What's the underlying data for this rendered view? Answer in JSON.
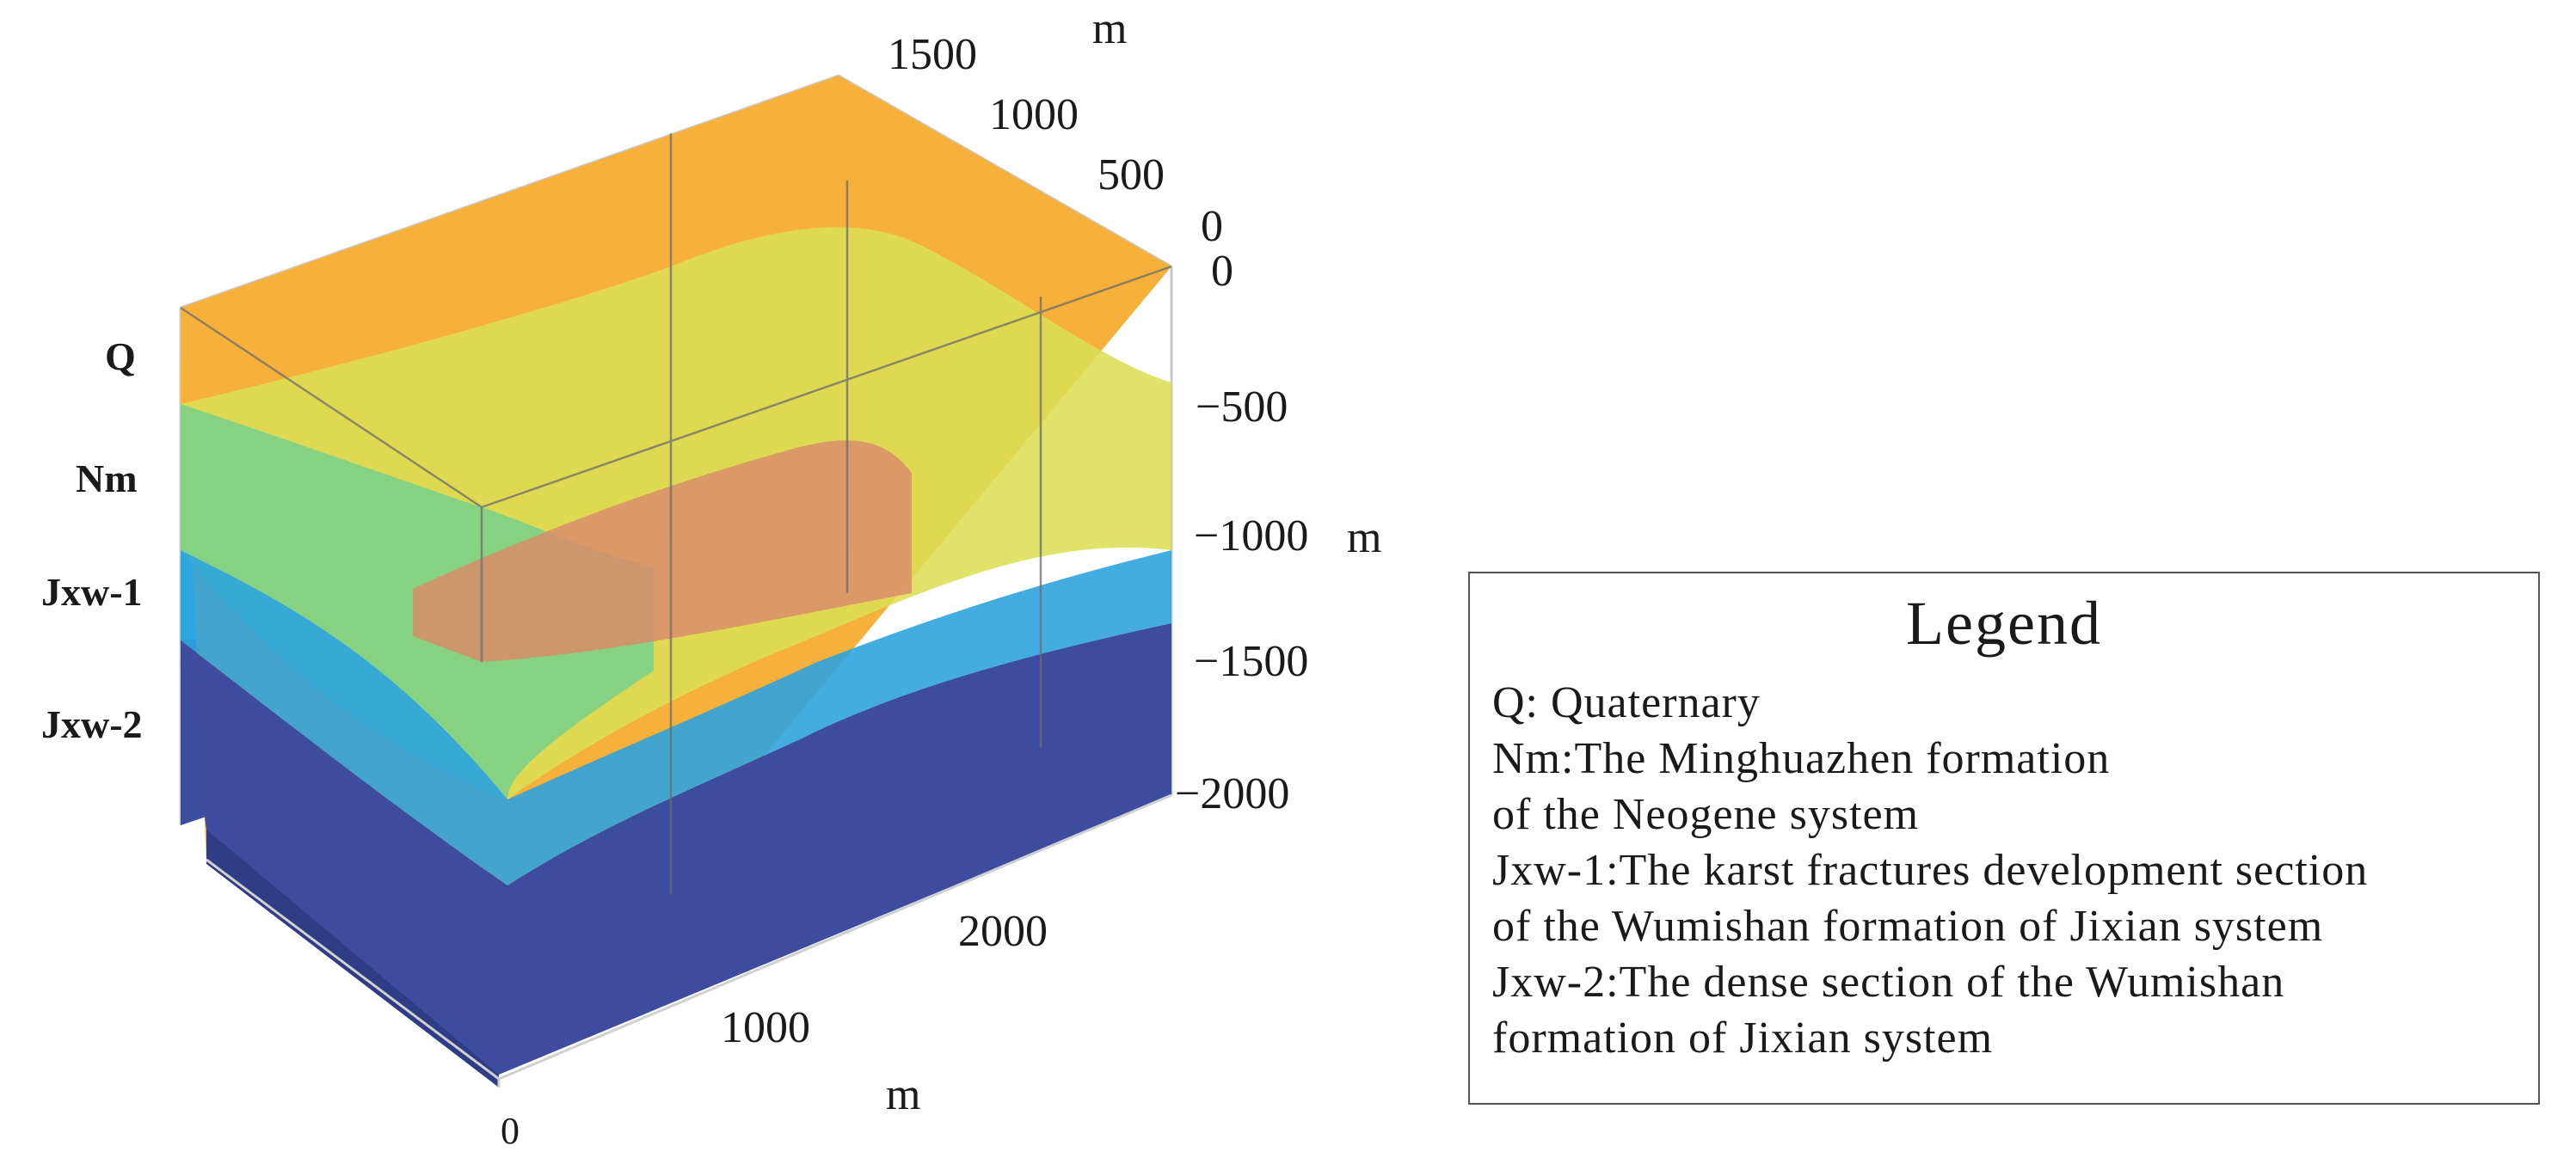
{
  "diagram": {
    "layers": [
      {
        "key": "Q",
        "label": "Q",
        "color": "#fbb433"
      },
      {
        "key": "Nm",
        "label": "Nm",
        "color": "#d8dc4c"
      },
      {
        "key": "Jxw-1",
        "label": "Jxw-1",
        "color": "#19c4e9"
      },
      {
        "key": "Jxw-2",
        "label": "Jxw-2",
        "color": "#3d4c9e"
      }
    ],
    "inner_block_color": "#d98d6a",
    "axes": {
      "depth": {
        "unit": "m",
        "ticks": [
          "0",
          "−1500",
          "−1000",
          "−500",
          "−2000"
        ]
      },
      "depth_ticks": [
        "0",
        "−500",
        "−1000",
        "−1500",
        "−2000"
      ],
      "depth_unit": "m",
      "back_ticks": [
        "0",
        "500",
        "1000",
        "1500"
      ],
      "back_unit": "m",
      "front_ticks": [
        "0",
        "1000",
        "2000"
      ],
      "front_unit": "m"
    }
  },
  "legend": {
    "title": "Legend",
    "lines": [
      "Q: Quaternary",
      "Nm:The Minghuazhen formation",
      "of the Neogene system",
      "Jxw-1:The karst fractures development section",
      "of the Wumishan formation of Jixian system",
      "Jxw-2:The dense section of the Wumishan",
      "formation of Jixian system"
    ]
  }
}
